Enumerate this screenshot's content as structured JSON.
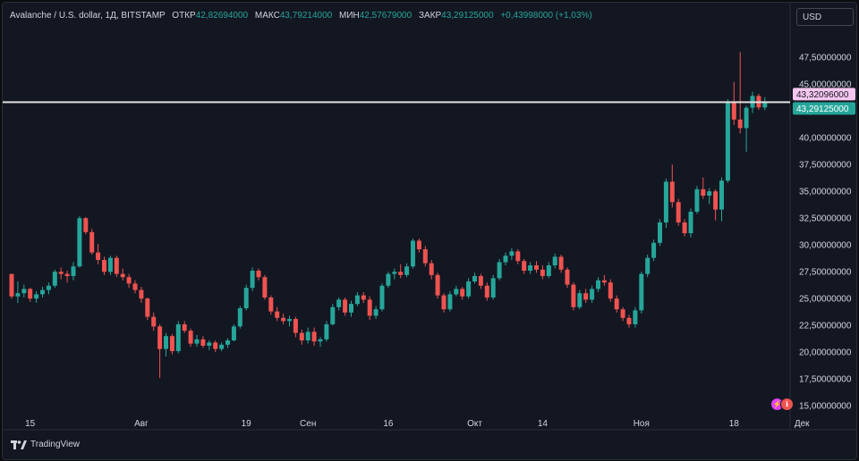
{
  "header": {
    "symbol": "Avalanche / U.S. dollar, 1Д, BITSTAMP",
    "open_label": "ОТКР",
    "open_value": "42,82694000",
    "high_label": "МАКС",
    "high_value": "43,79214000",
    "low_label": "МИН",
    "low_value": "42,57679000",
    "close_label": "ЗАКР",
    "close_value": "43,29125000",
    "change": "+0,43998000 (+1,03%)"
  },
  "currency_button": "USD",
  "brand": "TradingView",
  "events": {
    "event_a": "⚡",
    "event_b": "ℹ"
  },
  "colors": {
    "background": "#131722",
    "up": "#26a69a",
    "down": "#ef5350",
    "grid": "#1e222d",
    "text": "#d1d4dc",
    "crosshair": "#e0e0e0"
  },
  "chart_data": {
    "type": "candlestick",
    "title": "",
    "price_axis_ticks": [
      "47,50000000",
      "45,00000000",
      "42,50000000",
      "40,00000000",
      "37,50000000",
      "35,00000000",
      "32,50000000",
      "30,00000000",
      "27,50000000",
      "25,00000000",
      "22,50000000",
      "20,00000000",
      "17,50000000",
      "15,00000000"
    ],
    "price_axis_tick_values": [
      47.5,
      45,
      42.5,
      40,
      37.5,
      35,
      32.5,
      30,
      27.5,
      25,
      22.5,
      20,
      17.5,
      15
    ],
    "time_axis_labels": [
      "15",
      "Авг",
      "19",
      "Сен",
      "16",
      "Окт",
      "14",
      "Ноя",
      "18",
      "Дек"
    ],
    "time_axis_label_indices": [
      3,
      21,
      38,
      48,
      61,
      75,
      86,
      102,
      117,
      128
    ],
    "ylim": [
      14.1,
      50.1
    ],
    "grid": false,
    "price_line": {
      "value": 43.32096,
      "label": "43,32096000"
    },
    "last_price": {
      "value": 43.29125,
      "label": "43,29125000"
    },
    "candles": [
      [
        27.3,
        27.3,
        25.0,
        25.2
      ],
      [
        25.2,
        26.6,
        24.6,
        25.5
      ],
      [
        25.5,
        26.3,
        25.1,
        25.9
      ],
      [
        25.9,
        26.0,
        24.7,
        25.0
      ],
      [
        25.0,
        25.7,
        24.6,
        25.4
      ],
      [
        25.4,
        26.1,
        25.1,
        25.8
      ],
      [
        25.8,
        26.5,
        25.4,
        26.2
      ],
      [
        26.2,
        27.7,
        26.0,
        27.5
      ],
      [
        27.5,
        27.9,
        26.8,
        27.3
      ],
      [
        27.3,
        27.6,
        26.5,
        27.1
      ],
      [
        27.1,
        28.4,
        26.7,
        28.0
      ],
      [
        28.0,
        32.7,
        27.9,
        32.5
      ],
      [
        32.5,
        32.6,
        31.0,
        31.2
      ],
      [
        31.2,
        31.5,
        29.1,
        29.3
      ],
      [
        29.3,
        30.1,
        28.2,
        28.6
      ],
      [
        28.6,
        28.9,
        27.2,
        27.5
      ],
      [
        27.5,
        29.0,
        27.2,
        28.8
      ],
      [
        28.8,
        29.0,
        27.0,
        27.3
      ],
      [
        27.3,
        27.8,
        26.7,
        27.0
      ],
      [
        27.0,
        27.3,
        26.0,
        26.4
      ],
      [
        26.4,
        26.7,
        25.5,
        25.8
      ],
      [
        25.8,
        26.1,
        24.6,
        25.0
      ],
      [
        25.0,
        25.1,
        23.0,
        23.3
      ],
      [
        23.3,
        23.7,
        22.0,
        22.4
      ],
      [
        22.4,
        22.6,
        17.6,
        20.3
      ],
      [
        20.3,
        21.8,
        19.6,
        21.5
      ],
      [
        21.5,
        21.7,
        19.8,
        20.1
      ],
      [
        20.1,
        22.9,
        19.9,
        22.6
      ],
      [
        22.6,
        22.9,
        21.8,
        22.0
      ],
      [
        22.0,
        22.2,
        20.5,
        20.8
      ],
      [
        20.8,
        21.6,
        20.5,
        21.2
      ],
      [
        21.2,
        21.5,
        20.4,
        20.6
      ],
      [
        20.6,
        21.1,
        20.2,
        20.9
      ],
      [
        20.9,
        21.1,
        20.0,
        20.3
      ],
      [
        20.3,
        20.9,
        20.1,
        20.7
      ],
      [
        20.7,
        21.3,
        20.4,
        21.1
      ],
      [
        21.1,
        22.6,
        21.0,
        22.4
      ],
      [
        22.4,
        24.3,
        22.2,
        24.1
      ],
      [
        24.1,
        26.3,
        23.9,
        26.0
      ],
      [
        26.0,
        27.9,
        25.7,
        27.6
      ],
      [
        27.6,
        27.8,
        26.7,
        27.0
      ],
      [
        27.0,
        27.2,
        24.9,
        25.1
      ],
      [
        25.1,
        25.3,
        23.5,
        23.8
      ],
      [
        23.8,
        24.2,
        22.9,
        23.2
      ],
      [
        23.2,
        23.6,
        22.6,
        22.9
      ],
      [
        22.9,
        23.4,
        22.4,
        23.1
      ],
      [
        23.1,
        23.3,
        21.4,
        21.8
      ],
      [
        21.8,
        22.1,
        20.7,
        21.1
      ],
      [
        21.1,
        22.3,
        20.8,
        21.9
      ],
      [
        21.9,
        22.3,
        20.6,
        21.0
      ],
      [
        21.0,
        21.4,
        20.5,
        21.2
      ],
      [
        21.2,
        22.9,
        21.0,
        22.6
      ],
      [
        22.6,
        24.5,
        22.5,
        24.2
      ],
      [
        24.2,
        25.1,
        23.9,
        24.9
      ],
      [
        24.9,
        25.1,
        23.4,
        23.7
      ],
      [
        23.7,
        24.8,
        23.3,
        24.5
      ],
      [
        24.5,
        25.6,
        24.3,
        25.3
      ],
      [
        25.3,
        25.6,
        24.6,
        24.9
      ],
      [
        24.9,
        25.2,
        23.0,
        23.4
      ],
      [
        23.4,
        24.3,
        23.1,
        24.0
      ],
      [
        24.0,
        26.4,
        23.8,
        26.2
      ],
      [
        26.2,
        27.5,
        26.0,
        27.3
      ],
      [
        27.3,
        27.8,
        26.8,
        27.5
      ],
      [
        27.5,
        28.2,
        26.9,
        27.2
      ],
      [
        27.2,
        28.3,
        27.0,
        28.0
      ],
      [
        28.0,
        30.6,
        27.8,
        30.4
      ],
      [
        30.4,
        30.6,
        29.3,
        29.6
      ],
      [
        29.6,
        29.9,
        28.0,
        28.3
      ],
      [
        28.3,
        28.6,
        26.8,
        27.2
      ],
      [
        27.2,
        27.4,
        25.0,
        25.3
      ],
      [
        25.3,
        25.5,
        23.7,
        24.0
      ],
      [
        24.0,
        25.7,
        23.8,
        25.4
      ],
      [
        25.4,
        26.2,
        25.2,
        25.9
      ],
      [
        25.9,
        26.1,
        24.9,
        25.2
      ],
      [
        25.2,
        26.9,
        25.0,
        26.6
      ],
      [
        26.6,
        27.4,
        26.4,
        27.1
      ],
      [
        27.1,
        27.3,
        25.9,
        26.2
      ],
      [
        26.2,
        26.5,
        24.8,
        25.1
      ],
      [
        25.1,
        27.2,
        24.9,
        26.9
      ],
      [
        26.9,
        28.7,
        26.7,
        28.4
      ],
      [
        28.4,
        29.3,
        28.1,
        29.0
      ],
      [
        29.0,
        29.7,
        28.6,
        29.4
      ],
      [
        29.4,
        29.6,
        28.2,
        28.5
      ],
      [
        28.5,
        28.7,
        27.3,
        27.6
      ],
      [
        27.6,
        28.4,
        27.3,
        28.1
      ],
      [
        28.1,
        28.5,
        27.4,
        27.7
      ],
      [
        27.7,
        28.1,
        26.8,
        27.1
      ],
      [
        27.1,
        28.4,
        26.9,
        28.1
      ],
      [
        28.1,
        29.2,
        27.8,
        28.9
      ],
      [
        28.9,
        29.1,
        27.4,
        27.7
      ],
      [
        27.7,
        27.9,
        26.0,
        26.3
      ],
      [
        26.3,
        26.5,
        23.9,
        24.2
      ],
      [
        24.2,
        25.8,
        24.0,
        25.5
      ],
      [
        25.5,
        25.9,
        24.6,
        24.9
      ],
      [
        24.9,
        26.2,
        24.6,
        25.9
      ],
      [
        25.9,
        27.0,
        25.6,
        26.7
      ],
      [
        26.7,
        27.2,
        26.2,
        26.5
      ],
      [
        26.5,
        26.8,
        24.7,
        25.0
      ],
      [
        25.0,
        25.3,
        23.7,
        24.0
      ],
      [
        24.0,
        24.2,
        22.9,
        23.2
      ],
      [
        23.2,
        23.5,
        22.3,
        22.6
      ],
      [
        22.6,
        24.2,
        22.3,
        23.9
      ],
      [
        23.9,
        27.5,
        23.6,
        27.3
      ],
      [
        27.3,
        29.1,
        27.0,
        28.8
      ],
      [
        28.8,
        30.5,
        28.5,
        30.2
      ],
      [
        30.2,
        32.4,
        29.9,
        32.1
      ],
      [
        32.1,
        36.2,
        31.6,
        35.9
      ],
      [
        35.9,
        37.5,
        33.5,
        34.0
      ],
      [
        34.0,
        34.3,
        31.8,
        32.1
      ],
      [
        32.1,
        32.4,
        30.8,
        31.1
      ],
      [
        31.1,
        33.4,
        30.7,
        33.1
      ],
      [
        33.1,
        35.5,
        32.9,
        35.2
      ],
      [
        35.2,
        36.3,
        34.3,
        34.6
      ],
      [
        34.6,
        35.3,
        33.8,
        35.0
      ],
      [
        35.0,
        35.2,
        32.3,
        33.3
      ],
      [
        33.3,
        36.3,
        32.2,
        36.0
      ],
      [
        36.0,
        43.6,
        35.8,
        43.3
      ],
      [
        43.3,
        45.2,
        41.2,
        41.7
      ],
      [
        41.7,
        48.0,
        40.4,
        40.9
      ],
      [
        40.9,
        43.0,
        38.7,
        42.8
      ],
      [
        42.8,
        44.3,
        42.3,
        43.9
      ],
      [
        43.9,
        44.1,
        42.6,
        42.83
      ],
      [
        42.83,
        43.79,
        42.58,
        43.29
      ]
    ]
  }
}
